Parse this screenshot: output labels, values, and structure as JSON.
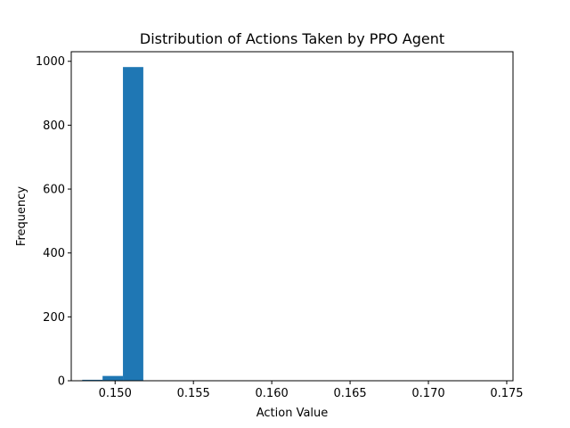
{
  "chart_data": {
    "type": "bar",
    "title": "Distribution of Actions Taken by PPO Agent",
    "xlabel": "Action Value",
    "ylabel": "Frequency",
    "xlim": [
      0.1472,
      0.1754
    ],
    "ylim": [
      0,
      1030
    ],
    "x_ticks": [
      0.15,
      0.155,
      0.16,
      0.165,
      0.17,
      0.175
    ],
    "x_tick_labels": [
      "0.150",
      "0.155",
      "0.160",
      "0.165",
      "0.170",
      "0.175"
    ],
    "y_ticks": [
      0,
      200,
      400,
      600,
      800,
      1000
    ],
    "y_tick_labels": [
      "0",
      "200",
      "400",
      "600",
      "800",
      "1000"
    ],
    "bar_color": "#1f77b4",
    "grid": false,
    "bins": [
      {
        "x0": 0.1479,
        "x1": 0.1492,
        "count": 3
      },
      {
        "x0": 0.1492,
        "x1": 0.1505,
        "count": 15
      },
      {
        "x0": 0.1505,
        "x1": 0.1518,
        "count": 982
      }
    ]
  }
}
